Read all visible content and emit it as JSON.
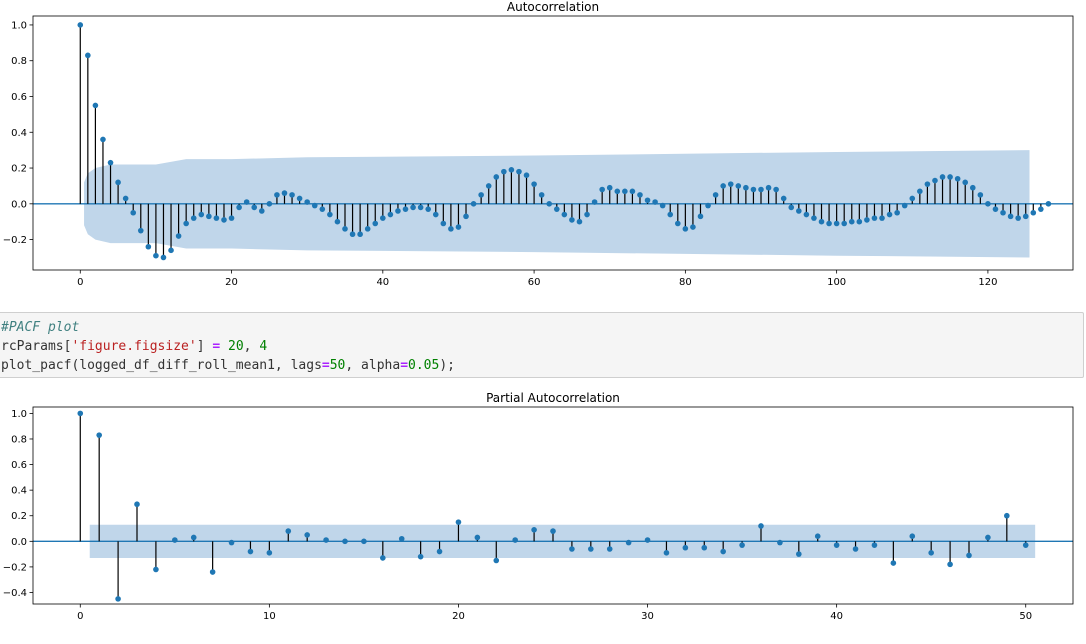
{
  "code_cell": {
    "line1_comment": "#PACF plot",
    "line2_a": "rcParams[",
    "line2_str": "'figure.figsize'",
    "line2_b": "] ",
    "line2_eq": "=",
    "line2_c": " ",
    "line2_n1": "20",
    "line2_d": ", ",
    "line2_n2": "4",
    "line3_a": "plot_pacf(logged_df_diff_roll_mean1, lags",
    "line3_eq1": "=",
    "line3_n1": "50",
    "line3_b": ", alpha",
    "line3_eq2": "=",
    "line3_n2": "0.05",
    "line3_c": ");"
  },
  "colors": {
    "marker": "#1f77b4",
    "stem": "#000000",
    "band": "#c0d6ea",
    "zero_line": "#1f77b4",
    "code_bg": "#f5f5f5"
  },
  "chart_data": [
    {
      "type": "stem",
      "title": "Autocorrelation",
      "xlabel": "",
      "ylabel": "",
      "xlim": [
        -6.25,
        131.25
      ],
      "ylim": [
        -0.37,
        1.05
      ],
      "xticks": [
        0,
        20,
        40,
        60,
        80,
        100,
        120
      ],
      "yticks": [
        -0.2,
        0.0,
        0.2,
        0.4,
        0.6,
        0.8,
        1.0
      ],
      "ytick_labels": [
        "−0.2",
        "0.0",
        "0.2",
        "0.4",
        "0.6",
        "0.8",
        "1.0"
      ],
      "x_start": 0,
      "values": [
        1.0,
        0.83,
        0.55,
        0.36,
        0.23,
        0.12,
        0.03,
        -0.05,
        -0.15,
        -0.24,
        -0.29,
        -0.3,
        -0.26,
        -0.18,
        -0.11,
        -0.08,
        -0.06,
        -0.07,
        -0.08,
        -0.09,
        -0.08,
        -0.02,
        0.01,
        -0.02,
        -0.04,
        0.0,
        0.05,
        0.06,
        0.05,
        0.03,
        0.01,
        -0.01,
        -0.03,
        -0.06,
        -0.1,
        -0.14,
        -0.17,
        -0.17,
        -0.14,
        -0.11,
        -0.08,
        -0.06,
        -0.04,
        -0.03,
        -0.02,
        -0.02,
        -0.03,
        -0.06,
        -0.11,
        -0.14,
        -0.13,
        -0.07,
        0.0,
        0.05,
        0.1,
        0.15,
        0.18,
        0.19,
        0.18,
        0.16,
        0.11,
        0.05,
        0.0,
        -0.03,
        -0.06,
        -0.09,
        -0.1,
        -0.06,
        0.01,
        0.08,
        0.09,
        0.07,
        0.07,
        0.07,
        0.05,
        0.02,
        0.01,
        -0.01,
        -0.06,
        -0.11,
        -0.14,
        -0.13,
        -0.07,
        -0.01,
        0.05,
        0.1,
        0.11,
        0.1,
        0.09,
        0.08,
        0.08,
        0.09,
        0.08,
        0.03,
        -0.02,
        -0.04,
        -0.06,
        -0.08,
        -0.1,
        -0.11,
        -0.11,
        -0.11,
        -0.1,
        -0.1,
        -0.09,
        -0.08,
        -0.08,
        -0.06,
        -0.05,
        -0.01,
        0.03,
        0.07,
        0.11,
        0.13,
        0.15,
        0.15,
        0.14,
        0.12,
        0.09,
        0.05,
        0.0,
        -0.03,
        -0.05,
        -0.07,
        -0.08,
        -0.07,
        -0.05,
        -0.03,
        0.0
      ],
      "confidence_band": {
        "x": [
          0.5,
          1,
          2,
          3,
          4,
          6,
          8,
          10,
          14,
          20,
          30,
          60,
          100,
          125.5
        ],
        "upper": [
          0.12,
          0.17,
          0.2,
          0.21,
          0.22,
          0.22,
          0.22,
          0.22,
          0.25,
          0.25,
          0.26,
          0.27,
          0.29,
          0.3
        ],
        "lower": [
          -0.12,
          -0.17,
          -0.2,
          -0.21,
          -0.22,
          -0.22,
          -0.22,
          -0.22,
          -0.25,
          -0.25,
          -0.26,
          -0.27,
          -0.29,
          -0.3
        ]
      },
      "grid": false,
      "legend": "none"
    },
    {
      "type": "stem",
      "title": "Partial Autocorrelation",
      "xlabel": "",
      "ylabel": "",
      "xlim": [
        -2.5,
        52.5
      ],
      "ylim": [
        -0.49,
        1.05
      ],
      "xticks": [
        0,
        10,
        20,
        30,
        40,
        50
      ],
      "yticks": [
        -0.4,
        -0.2,
        0.0,
        0.2,
        0.4,
        0.6,
        0.8,
        1.0
      ],
      "ytick_labels": [
        "−0.4",
        "−0.2",
        "0.0",
        "0.2",
        "0.4",
        "0.6",
        "0.8",
        "1.0"
      ],
      "x_start": 0,
      "values": [
        1.0,
        0.83,
        -0.45,
        0.29,
        -0.22,
        0.01,
        0.03,
        -0.24,
        -0.01,
        -0.08,
        -0.09,
        0.08,
        0.05,
        0.01,
        0.0,
        0.0,
        -0.13,
        0.02,
        -0.12,
        -0.08,
        0.15,
        0.03,
        -0.15,
        0.01,
        0.09,
        0.08,
        -0.06,
        -0.06,
        -0.06,
        -0.01,
        0.01,
        -0.09,
        -0.05,
        -0.05,
        -0.08,
        -0.03,
        0.12,
        -0.01,
        -0.1,
        0.04,
        -0.03,
        -0.06,
        -0.03,
        -0.17,
        0.04,
        -0.09,
        -0.18,
        -0.11,
        0.03,
        0.2,
        -0.03
      ],
      "confidence_band": {
        "x": [
          0.5,
          50.5
        ],
        "upper": [
          0.13,
          0.13
        ],
        "lower": [
          -0.13,
          -0.13
        ]
      },
      "grid": false,
      "legend": "none"
    }
  ]
}
